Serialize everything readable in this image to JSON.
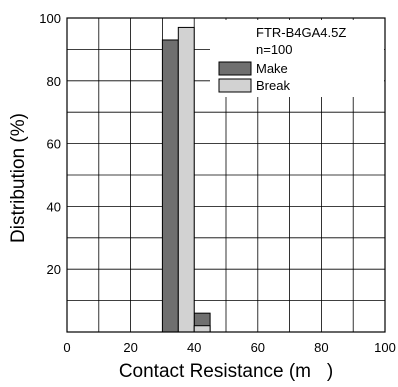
{
  "chart_data": {
    "type": "bar",
    "model": "FTR-B4GA4.5Z",
    "sample_size": "n=100",
    "xlabel": "Contact Resistance (m   )",
    "ylabel": "Distribution (%)",
    "xlim": [
      0,
      100
    ],
    "ylim": [
      0,
      100
    ],
    "x_ticks": [
      0,
      20,
      40,
      60,
      80,
      100
    ],
    "y_ticks": [
      20,
      40,
      60,
      80,
      100
    ],
    "grid": true,
    "legend_position": "top-right",
    "bin_width": 5,
    "series": [
      {
        "name": "Make",
        "color": "#6f6f6f",
        "bins": [
          30,
          35,
          40
        ],
        "values": [
          93,
          0,
          6
        ]
      },
      {
        "name": "Break",
        "color": "#d2d2d2",
        "bins": [
          30,
          35,
          40
        ],
        "values": [
          0,
          97,
          2
        ]
      }
    ]
  }
}
